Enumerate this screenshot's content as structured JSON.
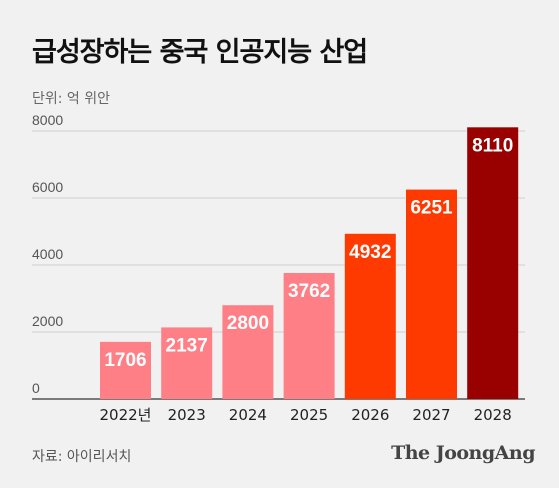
{
  "chart_data": {
    "type": "bar",
    "title": "급성장하는 중국 인공지능 산업",
    "unit_label": "단위: 억 위안",
    "categories": [
      "2022년",
      "2023",
      "2024",
      "2025",
      "2026",
      "2027",
      "2028"
    ],
    "values": [
      1706,
      2137,
      2800,
      3762,
      4932,
      6251,
      8110
    ],
    "colors": [
      "#ff7f86",
      "#ff7f86",
      "#ff7f86",
      "#ff7f86",
      "#ff3a00",
      "#ff3a00",
      "#990000"
    ],
    "ylim": [
      0,
      8000
    ],
    "yticks": [
      0,
      2000,
      4000,
      6000,
      8000
    ],
    "grid": true,
    "xlabel": "",
    "ylabel": ""
  },
  "source": "자료: 아이리서치",
  "brand": "The JoongAng"
}
